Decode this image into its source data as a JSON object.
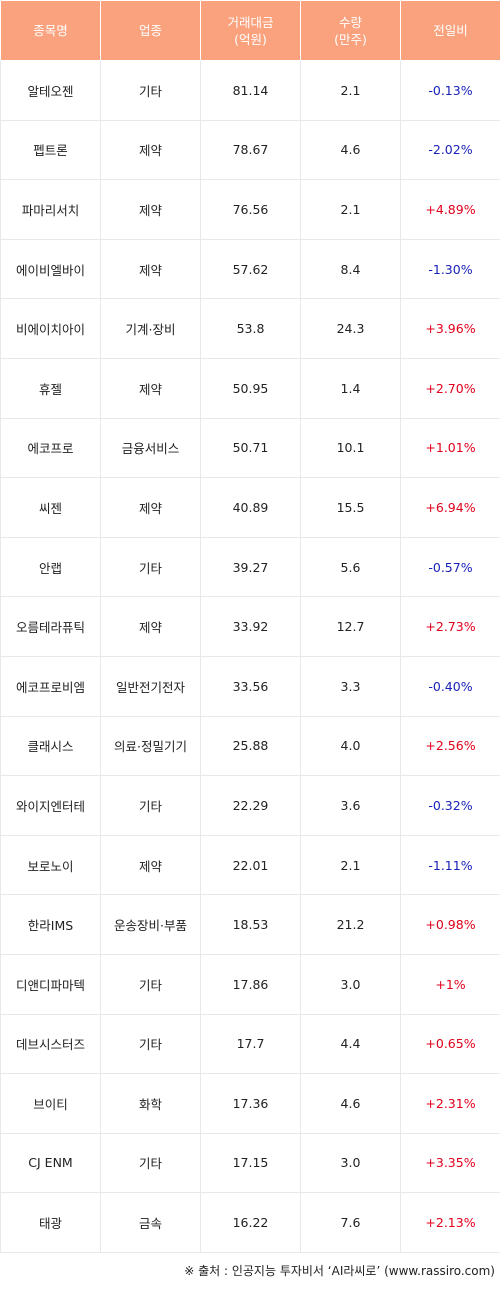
{
  "table": {
    "headers": [
      "종목명",
      "업종",
      "거래대금\n(억원)",
      "수량\n(만주)",
      "전일비"
    ],
    "rows": [
      {
        "name": "알테오젠",
        "sector": "기타",
        "amount": "81.14",
        "volume": "2.1",
        "change": "-0.13%",
        "dir": "down"
      },
      {
        "name": "펩트론",
        "sector": "제약",
        "amount": "78.67",
        "volume": "4.6",
        "change": "-2.02%",
        "dir": "down"
      },
      {
        "name": "파마리서치",
        "sector": "제약",
        "amount": "76.56",
        "volume": "2.1",
        "change": "+4.89%",
        "dir": "up"
      },
      {
        "name": "에이비엘바이",
        "sector": "제약",
        "amount": "57.62",
        "volume": "8.4",
        "change": "-1.30%",
        "dir": "down"
      },
      {
        "name": "비에이치아이",
        "sector": "기계·장비",
        "amount": "53.8",
        "volume": "24.3",
        "change": "+3.96%",
        "dir": "up"
      },
      {
        "name": "휴젤",
        "sector": "제약",
        "amount": "50.95",
        "volume": "1.4",
        "change": "+2.70%",
        "dir": "up"
      },
      {
        "name": "에코프로",
        "sector": "금융서비스",
        "amount": "50.71",
        "volume": "10.1",
        "change": "+1.01%",
        "dir": "up"
      },
      {
        "name": "씨젠",
        "sector": "제약",
        "amount": "40.89",
        "volume": "15.5",
        "change": "+6.94%",
        "dir": "up"
      },
      {
        "name": "안랩",
        "sector": "기타",
        "amount": "39.27",
        "volume": "5.6",
        "change": "-0.57%",
        "dir": "down"
      },
      {
        "name": "오름테라퓨틱",
        "sector": "제약",
        "amount": "33.92",
        "volume": "12.7",
        "change": "+2.73%",
        "dir": "up"
      },
      {
        "name": "에코프로비엠",
        "sector": "일반전기전자",
        "amount": "33.56",
        "volume": "3.3",
        "change": "-0.40%",
        "dir": "down"
      },
      {
        "name": "클래시스",
        "sector": "의료·정밀기기",
        "amount": "25.88",
        "volume": "4.0",
        "change": "+2.56%",
        "dir": "up"
      },
      {
        "name": "와이지엔터테",
        "sector": "기타",
        "amount": "22.29",
        "volume": "3.6",
        "change": "-0.32%",
        "dir": "down"
      },
      {
        "name": "보로노이",
        "sector": "제약",
        "amount": "22.01",
        "volume": "2.1",
        "change": "-1.11%",
        "dir": "down"
      },
      {
        "name": "한라IMS",
        "sector": "운송장비·부품",
        "amount": "18.53",
        "volume": "21.2",
        "change": "+0.98%",
        "dir": "up"
      },
      {
        "name": "디앤디파마텍",
        "sector": "기타",
        "amount": "17.86",
        "volume": "3.0",
        "change": "+1%",
        "dir": "up"
      },
      {
        "name": "데브시스터즈",
        "sector": "기타",
        "amount": "17.7",
        "volume": "4.4",
        "change": "+0.65%",
        "dir": "up"
      },
      {
        "name": "브이티",
        "sector": "화학",
        "amount": "17.36",
        "volume": "4.6",
        "change": "+2.31%",
        "dir": "up"
      },
      {
        "name": "CJ ENM",
        "sector": "기타",
        "amount": "17.15",
        "volume": "3.0",
        "change": "+3.35%",
        "dir": "up"
      },
      {
        "name": "태광",
        "sector": "금속",
        "amount": "16.22",
        "volume": "7.6",
        "change": "+2.13%",
        "dir": "up"
      }
    ]
  },
  "footer": {
    "source": "※ 출처 : 인공지능 투자비서 ‘AI라씨로’ (www.rassiro.com)"
  },
  "colors": {
    "header_bg": "#f9a27d",
    "up": "#e0001b",
    "down": "#1a22b8"
  }
}
